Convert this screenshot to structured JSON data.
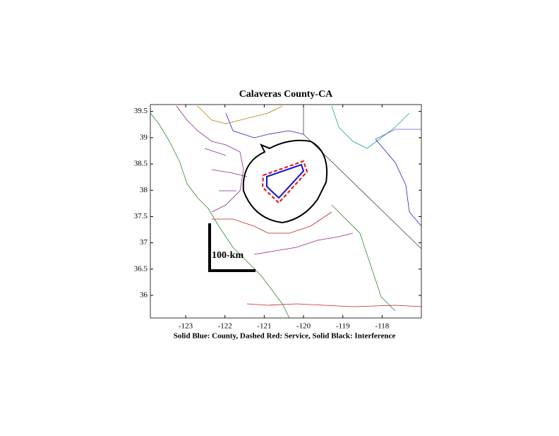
{
  "chart_data": {
    "type": "map",
    "title": "Calaveras County-CA",
    "xlabel": "Solid Blue: County, Dashed Red: Service, Solid Black: Interference",
    "xlim": [
      -123.9,
      -117.0
    ],
    "ylim": [
      35.57,
      39.63
    ],
    "xticks": [
      -123,
      -122,
      -121,
      -120,
      -119,
      -118
    ],
    "yticks": [
      36,
      36.5,
      37,
      37.5,
      38,
      38.5,
      39,
      39.5
    ],
    "scale_label": "100-km"
  }
}
